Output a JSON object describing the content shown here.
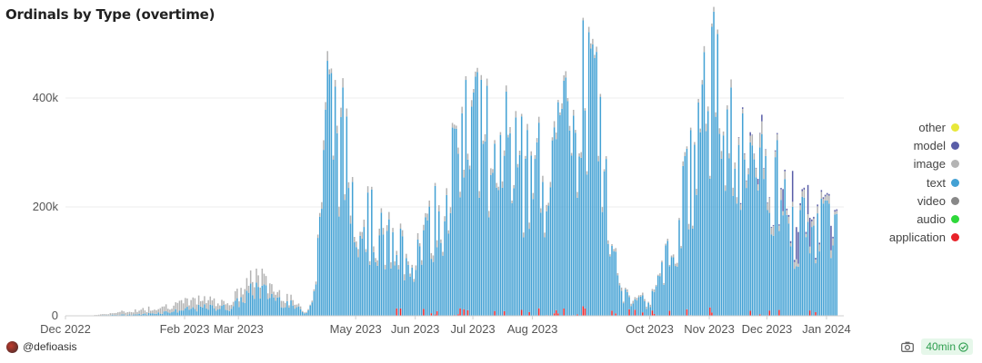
{
  "chart_data": {
    "type": "bar",
    "stacked": true,
    "title": "Ordinals by Type (overtime)",
    "xlabel": "",
    "ylabel": "",
    "ylim": [
      0,
      500000
    ],
    "y_ticks": [
      0,
      200000,
      400000
    ],
    "y_tick_labels": [
      "0",
      "200k",
      "400k"
    ],
    "x_start": "2022-12-01",
    "x_end": "2024-01-10",
    "x_ticks": [
      "2022-12-01",
      "2023-02-01",
      "2023-03-01",
      "2023-05-01",
      "2023-06-01",
      "2023-07-01",
      "2023-08-01",
      "2023-10-01",
      "2023-11-01",
      "2023-12-01",
      "2024-01-01"
    ],
    "x_tick_labels": [
      "Dec 2022",
      "Feb 2023",
      "Mar 2023",
      "May 2023",
      "Jun 2023",
      "Jul 2023",
      "Aug 2023",
      "Oct 2023",
      "Nov 2023",
      "Dec 2023",
      "Jan 2024"
    ],
    "grid": true,
    "legend_position": "right",
    "series": [
      {
        "name": "other",
        "color": "#e8e83a"
      },
      {
        "name": "model",
        "color": "#5a5ea8"
      },
      {
        "name": "image",
        "color": "#b4b4b4"
      },
      {
        "name": "text",
        "color": "#43a1d4"
      },
      {
        "name": "video",
        "color": "#888888"
      },
      {
        "name": "audio",
        "color": "#2ed83a"
      },
      {
        "name": "application",
        "color": "#e8232a"
      }
    ],
    "data_approx_daily_totals": [
      {
        "x": "2022-12-15",
        "text": 500,
        "image": 300
      },
      {
        "x": "2023-01-10",
        "text": 3000,
        "image": 8000
      },
      {
        "x": "2023-01-25",
        "text": 8000,
        "image": 12000
      },
      {
        "x": "2023-02-10",
        "text": 15000,
        "image": 15000
      },
      {
        "x": "2023-02-25",
        "text": 15000,
        "image": 10000
      },
      {
        "x": "2023-03-10",
        "text": 50000,
        "image": 25000
      },
      {
        "x": "2023-03-25",
        "text": 25000,
        "image": 10000
      },
      {
        "x": "2023-04-05",
        "text": 5000,
        "image": 2000
      },
      {
        "x": "2023-04-10",
        "text": 60000,
        "image": 5000
      },
      {
        "x": "2023-04-15",
        "text": 380000,
        "image": 15000
      },
      {
        "x": "2023-04-20",
        "text": 350000,
        "image": 15000
      },
      {
        "x": "2023-05-01",
        "text": 200000,
        "image": 10000
      },
      {
        "x": "2023-05-15",
        "text": 130000,
        "image": 10000
      },
      {
        "x": "2023-06-01",
        "text": 100000,
        "image": 8000
      },
      {
        "x": "2023-06-15",
        "text": 200000,
        "image": 10000
      },
      {
        "x": "2023-07-01",
        "text": 350000,
        "image": 10000
      },
      {
        "x": "2023-07-15",
        "text": 300000,
        "image": 8000
      },
      {
        "x": "2023-08-01",
        "text": 230000,
        "image": 8000
      },
      {
        "x": "2023-08-15",
        "text": 300000,
        "image": 8000
      },
      {
        "x": "2023-09-01",
        "text": 400000,
        "image": 8000
      },
      {
        "x": "2023-09-15",
        "text": 40000,
        "image": 5000
      },
      {
        "x": "2023-10-01",
        "text": 20000,
        "image": 3000
      },
      {
        "x": "2023-10-15",
        "text": 150000,
        "image": 5000
      },
      {
        "x": "2023-11-01",
        "text": 420000,
        "image": 10000
      },
      {
        "x": "2023-11-15",
        "text": 300000,
        "image": 10000
      },
      {
        "x": "2023-12-01",
        "text": 280000,
        "image": 20000,
        "model": 10000
      },
      {
        "x": "2023-12-15",
        "text": 150000,
        "image": 10000,
        "model": 40000
      },
      {
        "x": "2024-01-01",
        "text": 170000,
        "image": 10000,
        "model": 30000
      }
    ]
  },
  "footer": {
    "user": "@defioasis",
    "refresh": "40min"
  }
}
